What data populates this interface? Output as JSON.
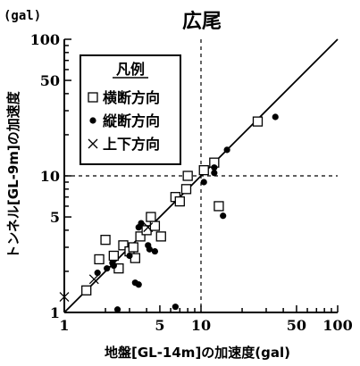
{
  "chart_data": {
    "type": "scatter",
    "title": "広尾",
    "y_unit": "(gal)",
    "xlabel": "地盤[GL-14m]の加速度(gal)",
    "ylabel": "トンネル[GL-9m]の加速度",
    "xscale": "log",
    "yscale": "log",
    "xlim": [
      1,
      100
    ],
    "ylim": [
      1,
      100
    ],
    "x_tick_labels": [
      {
        "value": 1,
        "label": "1"
      },
      {
        "value": 5,
        "label": "5"
      },
      {
        "value": 10,
        "label": "10"
      },
      {
        "value": 50,
        "label": "50"
      },
      {
        "value": 100,
        "label": "100"
      }
    ],
    "y_tick_labels": [
      {
        "value": 1,
        "label": "1"
      },
      {
        "value": 5,
        "label": "5"
      },
      {
        "value": 10,
        "label": "10"
      },
      {
        "value": 50,
        "label": "50"
      },
      {
        "value": 100,
        "label": "100"
      }
    ],
    "reference_lines": {
      "diagonal": "y = x",
      "dashed_x": 10,
      "dashed_y": 10
    },
    "legend": {
      "title": "凡例",
      "position": "top-left"
    },
    "series": [
      {
        "name": "横断方向",
        "marker": "square-open",
        "points": [
          [
            1.45,
            1.45
          ],
          [
            1.8,
            2.45
          ],
          [
            2.0,
            3.4
          ],
          [
            2.3,
            2.6
          ],
          [
            2.5,
            2.1
          ],
          [
            2.7,
            3.1
          ],
          [
            3.0,
            2.8
          ],
          [
            3.2,
            3.0
          ],
          [
            3.3,
            2.5
          ],
          [
            3.6,
            3.6
          ],
          [
            4.0,
            4.0
          ],
          [
            4.3,
            5.0
          ],
          [
            4.6,
            4.3
          ],
          [
            5.1,
            3.6
          ],
          [
            6.5,
            7.0
          ],
          [
            7.0,
            6.5
          ],
          [
            7.8,
            8.0
          ],
          [
            8.0,
            10.0
          ],
          [
            10.5,
            11.0
          ],
          [
            12.5,
            12.5
          ],
          [
            13.5,
            6.0
          ],
          [
            26.0,
            25.0
          ]
        ]
      },
      {
        "name": "縦断方向",
        "marker": "circle-filled",
        "points": [
          [
            1.75,
            1.95
          ],
          [
            2.05,
            2.1
          ],
          [
            2.25,
            2.3
          ],
          [
            2.3,
            2.2
          ],
          [
            2.45,
            1.05
          ],
          [
            3.0,
            2.6
          ],
          [
            3.3,
            1.65
          ],
          [
            3.5,
            4.2
          ],
          [
            3.5,
            1.6
          ],
          [
            3.65,
            4.5
          ],
          [
            4.1,
            3.1
          ],
          [
            4.2,
            2.9
          ],
          [
            4.6,
            2.8
          ],
          [
            6.5,
            1.1
          ],
          [
            10.5,
            9.0
          ],
          [
            12.5,
            10.5
          ],
          [
            12.5,
            11.5
          ],
          [
            14.5,
            5.1
          ],
          [
            15.5,
            15.5
          ],
          [
            35.0,
            27.0
          ]
        ]
      },
      {
        "name": "上下方向",
        "marker": "cross",
        "points": [
          [
            1.0,
            1.3
          ],
          [
            1.65,
            1.75
          ],
          [
            4.1,
            4.2
          ]
        ]
      }
    ]
  }
}
